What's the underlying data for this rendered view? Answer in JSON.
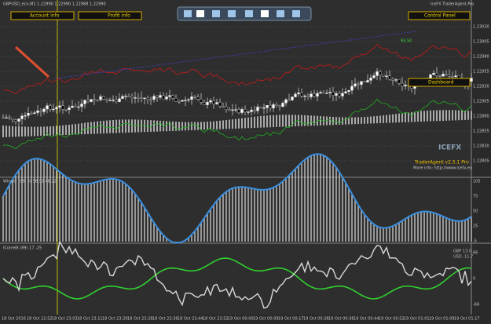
{
  "window": {
    "symbol_line": "GBPUSD_ecn,M1  1.22990 1.22990 1.22988 1.22990",
    "brand": "IceFX TraderAgent.Pro",
    "version": "TraderAgent v2.5.1 Pro",
    "info": "More info: http://www.icefx.eu",
    "logo": "ICEFX"
  },
  "buttons": {
    "account": "Account info",
    "profit": "Profit info",
    "control": "Control Panel",
    "dashboard": "Dashboard"
  },
  "price_axis": [
    "1.23030",
    "1.23005",
    "1.22980",
    "1.22955",
    "1.22930",
    "1.22905",
    "1.22880",
    "1.22855",
    "1.22830",
    "1.22805"
  ],
  "price_marker": "93.50",
  "winner": {
    "title": "Winner (89, 3)  56.93 48.22",
    "axis": [
      "105",
      "75",
      "50",
      "25",
      "-5"
    ]
  },
  "correl": {
    "title": "ICorrel8 (89)  17 -25",
    "gbp": "GBP 13.0",
    "usd": "USD -11.7",
    "axis": [
      "66",
      "0",
      "-66"
    ]
  },
  "time_axis": [
    "18 Oct 2016",
    "18 Oct 22:52",
    "18 Oct 23:03",
    "18 Oct 23:11",
    "18 Oct 23:20",
    "18 Oct 23:28",
    "18 Oct 23:36",
    "18 Oct 23:44",
    "18 Oct 23:52",
    "19 Oct 00:00",
    "19 Oct 00:09",
    "19 Oct 00:17",
    "19 Oct 00:28",
    "19 Oct 00:36",
    "19 Oct 00:44",
    "19 Oct 00:52",
    "19 Oct 01:01",
    "19 Oct 01:09",
    "19 Oct 01:17"
  ]
}
